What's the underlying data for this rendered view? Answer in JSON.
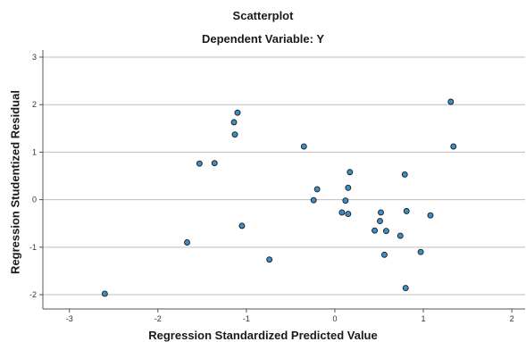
{
  "chart_data": {
    "type": "scatter",
    "title": "Scatterplot",
    "subtitle": "Dependent Variable: Y",
    "xlabel": "Regression Standardized Predicted Value",
    "ylabel": "Regression Studentized Residual",
    "xlim": [
      -3.3,
      2.15
    ],
    "ylim": [
      -2.3,
      3.15
    ],
    "xticks": [
      "-3",
      "-2",
      "-1",
      "0",
      "1",
      "2"
    ],
    "yticks": [
      "3",
      "2",
      "1",
      "0",
      "-1",
      "-2"
    ],
    "grid": "horizontal",
    "point_color": "#3d8ec6",
    "point_edge_color": "#1a1a1a",
    "points": [
      {
        "x": -2.6,
        "y": -1.98
      },
      {
        "x": -1.67,
        "y": -0.9
      },
      {
        "x": -1.53,
        "y": 0.76
      },
      {
        "x": -1.36,
        "y": 0.77
      },
      {
        "x": -1.14,
        "y": 1.63
      },
      {
        "x": -1.13,
        "y": 1.37
      },
      {
        "x": -1.1,
        "y": 1.83
      },
      {
        "x": -1.05,
        "y": -0.55
      },
      {
        "x": -0.74,
        "y": -1.26
      },
      {
        "x": -0.35,
        "y": 1.12
      },
      {
        "x": -0.24,
        "y": -0.01
      },
      {
        "x": -0.2,
        "y": 0.22
      },
      {
        "x": 0.08,
        "y": -0.27
      },
      {
        "x": 0.12,
        "y": -0.02
      },
      {
        "x": 0.15,
        "y": -0.3
      },
      {
        "x": 0.15,
        "y": 0.25
      },
      {
        "x": 0.17,
        "y": 0.58
      },
      {
        "x": 0.45,
        "y": -0.65
      },
      {
        "x": 0.51,
        "y": -0.45
      },
      {
        "x": 0.52,
        "y": -0.27
      },
      {
        "x": 0.56,
        "y": -1.16
      },
      {
        "x": 0.58,
        "y": -0.66
      },
      {
        "x": 0.74,
        "y": -0.76
      },
      {
        "x": 0.79,
        "y": 0.53
      },
      {
        "x": 0.8,
        "y": -1.86
      },
      {
        "x": 0.81,
        "y": -0.24
      },
      {
        "x": 0.97,
        "y": -1.1
      },
      {
        "x": 1.08,
        "y": -0.33
      },
      {
        "x": 1.31,
        "y": 2.06
      },
      {
        "x": 1.34,
        "y": 1.12
      }
    ]
  }
}
